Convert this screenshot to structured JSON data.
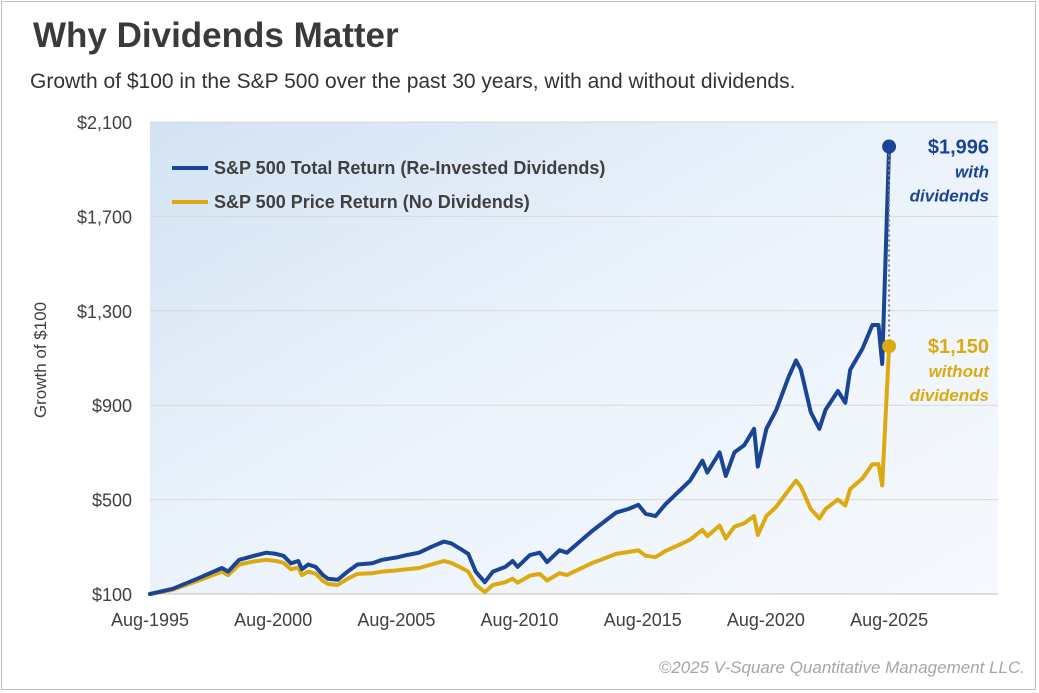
{
  "header": {
    "title": "Why Dividends Matter",
    "subtitle": "Growth of $100 in the S&P 500 over the past 30 years, with and without dividends."
  },
  "footer": {
    "copyright": "©2025 V-Square Quantitative Management LLC."
  },
  "colors": {
    "total_return": "#1a4496",
    "price_return": "#dcaa10",
    "connector": "#808080",
    "grid": "#d9d9d9"
  },
  "chart_data": {
    "type": "line",
    "title": "",
    "xlabel": "",
    "ylabel": "Growth of $100",
    "xlim": [
      1995.58,
      2030.0
    ],
    "ylim": [
      100,
      2100
    ],
    "y_ticks": [
      {
        "value": 100,
        "label": "$100"
      },
      {
        "value": 500,
        "label": "$500"
      },
      {
        "value": 900,
        "label": "$900"
      },
      {
        "value": 1300,
        "label": "$1,300"
      },
      {
        "value": 1700,
        "label": "$1,700"
      },
      {
        "value": 2100,
        "label": "$2,100"
      }
    ],
    "x_ticks": [
      {
        "value": 1995.58,
        "label": "Aug-1995"
      },
      {
        "value": 2000.58,
        "label": "Aug-2000"
      },
      {
        "value": 2005.58,
        "label": "Aug-2005"
      },
      {
        "value": 2010.58,
        "label": "Aug-2010"
      },
      {
        "value": 2015.58,
        "label": "Aug-2015"
      },
      {
        "value": 2020.58,
        "label": "Aug-2020"
      },
      {
        "value": 2025.58,
        "label": "Aug-2025"
      }
    ],
    "grid": "horizontal",
    "legend_position": "top-left",
    "series": [
      {
        "name": "S&P 500 Total Return (Re-Invested Dividends)",
        "points": [
          [
            1995.58,
            100
          ],
          [
            1996.5,
            122
          ],
          [
            1997.5,
            165
          ],
          [
            1998.5,
            210
          ],
          [
            1998.75,
            195
          ],
          [
            1999.2,
            245
          ],
          [
            1999.8,
            262
          ],
          [
            2000.3,
            275
          ],
          [
            2000.7,
            270
          ],
          [
            2001.0,
            262
          ],
          [
            2001.3,
            230
          ],
          [
            2001.6,
            240
          ],
          [
            2001.75,
            205
          ],
          [
            2002.0,
            225
          ],
          [
            2002.3,
            215
          ],
          [
            2002.6,
            180
          ],
          [
            2002.8,
            165
          ],
          [
            2003.2,
            160
          ],
          [
            2003.6,
            195
          ],
          [
            2004.0,
            225
          ],
          [
            2004.6,
            230
          ],
          [
            2005.0,
            245
          ],
          [
            2005.6,
            255
          ],
          [
            2006.0,
            265
          ],
          [
            2006.5,
            275
          ],
          [
            2007.0,
            300
          ],
          [
            2007.5,
            322
          ],
          [
            2007.8,
            315
          ],
          [
            2008.2,
            290
          ],
          [
            2008.5,
            270
          ],
          [
            2008.8,
            195
          ],
          [
            2009.17,
            150
          ],
          [
            2009.5,
            195
          ],
          [
            2010.0,
            215
          ],
          [
            2010.3,
            240
          ],
          [
            2010.5,
            215
          ],
          [
            2011.0,
            265
          ],
          [
            2011.4,
            275
          ],
          [
            2011.7,
            235
          ],
          [
            2012.2,
            285
          ],
          [
            2012.5,
            275
          ],
          [
            2013.0,
            320
          ],
          [
            2013.5,
            365
          ],
          [
            2014.0,
            405
          ],
          [
            2014.5,
            445
          ],
          [
            2015.0,
            460
          ],
          [
            2015.4,
            478
          ],
          [
            2015.7,
            440
          ],
          [
            2016.1,
            430
          ],
          [
            2016.5,
            480
          ],
          [
            2017.0,
            530
          ],
          [
            2017.5,
            580
          ],
          [
            2018.0,
            665
          ],
          [
            2018.2,
            615
          ],
          [
            2018.7,
            700
          ],
          [
            2018.95,
            600
          ],
          [
            2019.3,
            700
          ],
          [
            2019.7,
            730
          ],
          [
            2020.1,
            800
          ],
          [
            2020.25,
            640
          ],
          [
            2020.6,
            800
          ],
          [
            2021.0,
            880
          ],
          [
            2021.5,
            1020
          ],
          [
            2021.8,
            1090
          ],
          [
            2022.0,
            1050
          ],
          [
            2022.4,
            870
          ],
          [
            2022.75,
            800
          ],
          [
            2023.0,
            880
          ],
          [
            2023.5,
            960
          ],
          [
            2023.8,
            910
          ],
          [
            2024.0,
            1050
          ],
          [
            2024.5,
            1140
          ],
          [
            2024.9,
            1240
          ],
          [
            2025.15,
            1240
          ],
          [
            2025.3,
            1075
          ],
          [
            2025.58,
            1996
          ]
        ]
      },
      {
        "name": "S&P 500 Price Return (No Dividends)",
        "points": [
          [
            1995.58,
            100
          ],
          [
            1996.5,
            118
          ],
          [
            1997.5,
            155
          ],
          [
            1998.5,
            195
          ],
          [
            1998.75,
            180
          ],
          [
            1999.2,
            225
          ],
          [
            1999.8,
            238
          ],
          [
            2000.3,
            245
          ],
          [
            2000.7,
            240
          ],
          [
            2001.0,
            232
          ],
          [
            2001.3,
            205
          ],
          [
            2001.6,
            212
          ],
          [
            2001.75,
            180
          ],
          [
            2002.0,
            195
          ],
          [
            2002.3,
            186
          ],
          [
            2002.6,
            155
          ],
          [
            2002.8,
            143
          ],
          [
            2003.2,
            138
          ],
          [
            2003.6,
            165
          ],
          [
            2004.0,
            185
          ],
          [
            2004.6,
            188
          ],
          [
            2005.0,
            195
          ],
          [
            2005.6,
            200
          ],
          [
            2006.0,
            205
          ],
          [
            2006.5,
            210
          ],
          [
            2007.0,
            225
          ],
          [
            2007.5,
            240
          ],
          [
            2007.8,
            232
          ],
          [
            2008.2,
            212
          ],
          [
            2008.5,
            195
          ],
          [
            2008.8,
            140
          ],
          [
            2009.17,
            108
          ],
          [
            2009.5,
            138
          ],
          [
            2010.0,
            150
          ],
          [
            2010.3,
            165
          ],
          [
            2010.5,
            148
          ],
          [
            2011.0,
            178
          ],
          [
            2011.4,
            185
          ],
          [
            2011.7,
            157
          ],
          [
            2012.2,
            188
          ],
          [
            2012.5,
            180
          ],
          [
            2013.0,
            205
          ],
          [
            2013.5,
            230
          ],
          [
            2014.0,
            250
          ],
          [
            2014.5,
            270
          ],
          [
            2015.0,
            278
          ],
          [
            2015.4,
            285
          ],
          [
            2015.7,
            262
          ],
          [
            2016.1,
            256
          ],
          [
            2016.5,
            282
          ],
          [
            2017.0,
            305
          ],
          [
            2017.5,
            330
          ],
          [
            2018.0,
            372
          ],
          [
            2018.2,
            345
          ],
          [
            2018.7,
            390
          ],
          [
            2018.95,
            335
          ],
          [
            2019.3,
            385
          ],
          [
            2019.7,
            400
          ],
          [
            2020.1,
            430
          ],
          [
            2020.25,
            350
          ],
          [
            2020.6,
            430
          ],
          [
            2021.0,
            470
          ],
          [
            2021.5,
            540
          ],
          [
            2021.8,
            580
          ],
          [
            2022.0,
            555
          ],
          [
            2022.4,
            460
          ],
          [
            2022.75,
            420
          ],
          [
            2023.0,
            460
          ],
          [
            2023.5,
            500
          ],
          [
            2023.8,
            475
          ],
          [
            2024.0,
            545
          ],
          [
            2024.5,
            590
          ],
          [
            2024.9,
            650
          ],
          [
            2025.15,
            650
          ],
          [
            2025.3,
            560
          ],
          [
            2025.58,
            1150
          ]
        ]
      }
    ],
    "annotations": [
      {
        "series": 0,
        "value_label": "$1,996",
        "lines": [
          "with",
          "dividends"
        ]
      },
      {
        "series": 1,
        "value_label": "$1,150",
        "lines": [
          "without",
          "dividends"
        ]
      }
    ]
  }
}
